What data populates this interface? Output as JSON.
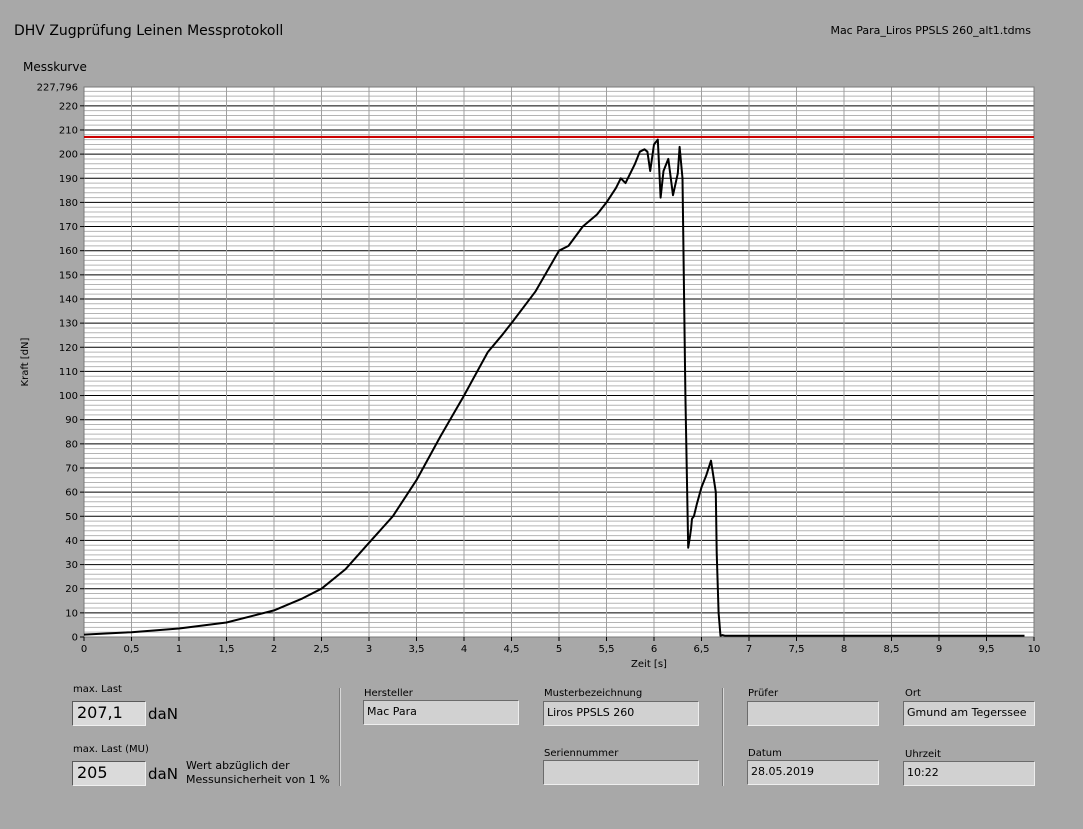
{
  "header": {
    "title": "DHV Zugprüfung Leinen Messprotokoll",
    "filename": "Mac Para_Liros PPSLS 260_alt1.tdms"
  },
  "chart_data": {
    "type": "line",
    "title": "Messkurve",
    "xlabel": "Zeit [s]",
    "ylabel": "Kraft [dN]",
    "xlim": [
      0,
      10
    ],
    "ylim": [
      0,
      227.796
    ],
    "ymax_label": "227,796",
    "x_ticks": [
      "0",
      "0,5",
      "1",
      "1,5",
      "2",
      "2,5",
      "3",
      "3,5",
      "4",
      "4,5",
      "5",
      "5,5",
      "6",
      "6,5",
      "7",
      "7,5",
      "8",
      "8,5",
      "9",
      "9,5",
      "10"
    ],
    "y_ticks": [
      "0",
      "10",
      "20",
      "30",
      "40",
      "50",
      "60",
      "70",
      "80",
      "90",
      "100",
      "110",
      "120",
      "130",
      "140",
      "150",
      "160",
      "170",
      "180",
      "190",
      "200",
      "210",
      "220"
    ],
    "grid": true,
    "threshold": {
      "value": 207.1,
      "color": "#cc0000"
    },
    "series": [
      {
        "color": "#000000",
        "x": [
          0,
          0.5,
          1,
          1.5,
          2,
          2.3,
          2.5,
          2.75,
          3,
          3.25,
          3.5,
          3.75,
          4,
          4.25,
          4.4,
          4.5,
          4.75,
          5,
          5.1,
          5.25,
          5.4,
          5.5,
          5.6,
          5.65,
          5.7,
          5.8,
          5.85,
          5.9,
          5.93,
          5.96,
          6,
          6.04,
          6.07,
          6.1,
          6.15,
          6.2,
          6.25,
          6.27,
          6.3,
          6.33,
          6.36,
          6.38,
          6.39,
          6.4,
          6.42,
          6.45,
          6.5,
          6.55,
          6.6,
          6.65,
          6.66,
          6.68,
          6.7,
          6.72,
          6.75,
          7,
          8,
          9,
          9.9
        ],
        "y": [
          1,
          2,
          3.5,
          6,
          11,
          16,
          20,
          28,
          39,
          50,
          65,
          83,
          100,
          118,
          125,
          130,
          143,
          160,
          162,
          170,
          175,
          180,
          186,
          190,
          188,
          196,
          201,
          202,
          201,
          193,
          204,
          206,
          182,
          193,
          198,
          183,
          192,
          203,
          190,
          100,
          37,
          42,
          45,
          49,
          50,
          55,
          62,
          67,
          73,
          60,
          35,
          10,
          0.5,
          0.8,
          0.5,
          0.5,
          0.5,
          0.5,
          0.5
        ]
      }
    ]
  },
  "results": {
    "max_last_label": "max. Last",
    "max_last_value": "207,1",
    "max_last_unit": "daN",
    "max_last_mu_label": "max. Last (MU)",
    "max_last_mu_value": "205",
    "max_last_mu_unit": "daN",
    "mu_note_1": "Wert abzüglich der",
    "mu_note_2": "Messunsicherheit von 1 %"
  },
  "info": {
    "hersteller_label": "Hersteller",
    "hersteller_value": "Mac Para",
    "musterbezeichnung_label": "Musterbezeichnung",
    "musterbezeichnung_value": "Liros PPSLS 260",
    "seriennummer_label": "Seriennummer",
    "seriennummer_value": "",
    "pruefer_label": "Prüfer",
    "pruefer_value": "",
    "ort_label": "Ort",
    "ort_value": "Gmund am Tegerssee",
    "datum_label": "Datum",
    "datum_value": "28.05.2019",
    "uhrzeit_label": "Uhrzeit",
    "uhrzeit_value": "10:22"
  }
}
